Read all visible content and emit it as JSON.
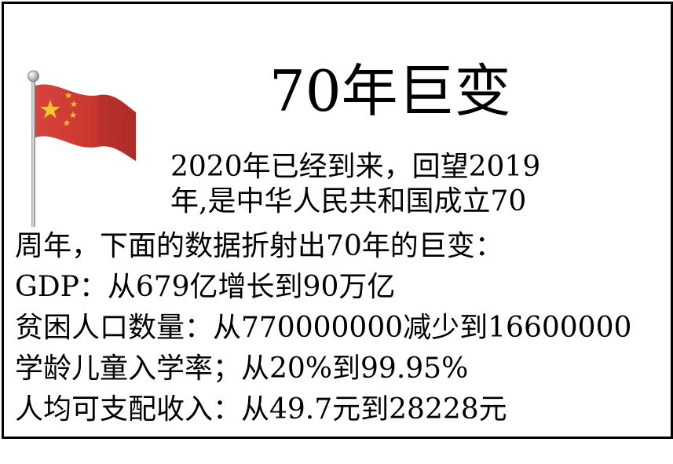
{
  "title": "70年巨变",
  "intro": {
    "line1": "2020年已经到来，回望2019",
    "line2": "年,是中华人民共和国成立70",
    "line3": "周年，下面的数据折射出70年的巨变："
  },
  "stats": [
    "GDP：从679亿增长到90万亿",
    "贫困人口数量：从770000000减少到16600000",
    "学龄儿童入学率；从20%到99.95%",
    "人均可支配收入：从49.7元到28228元"
  ],
  "colors": {
    "flag_red": "#cd3a33",
    "flag_star": "#f6c533",
    "pole": "#7f7f7f"
  },
  "icons": {
    "flag": "china-flag-icon"
  }
}
